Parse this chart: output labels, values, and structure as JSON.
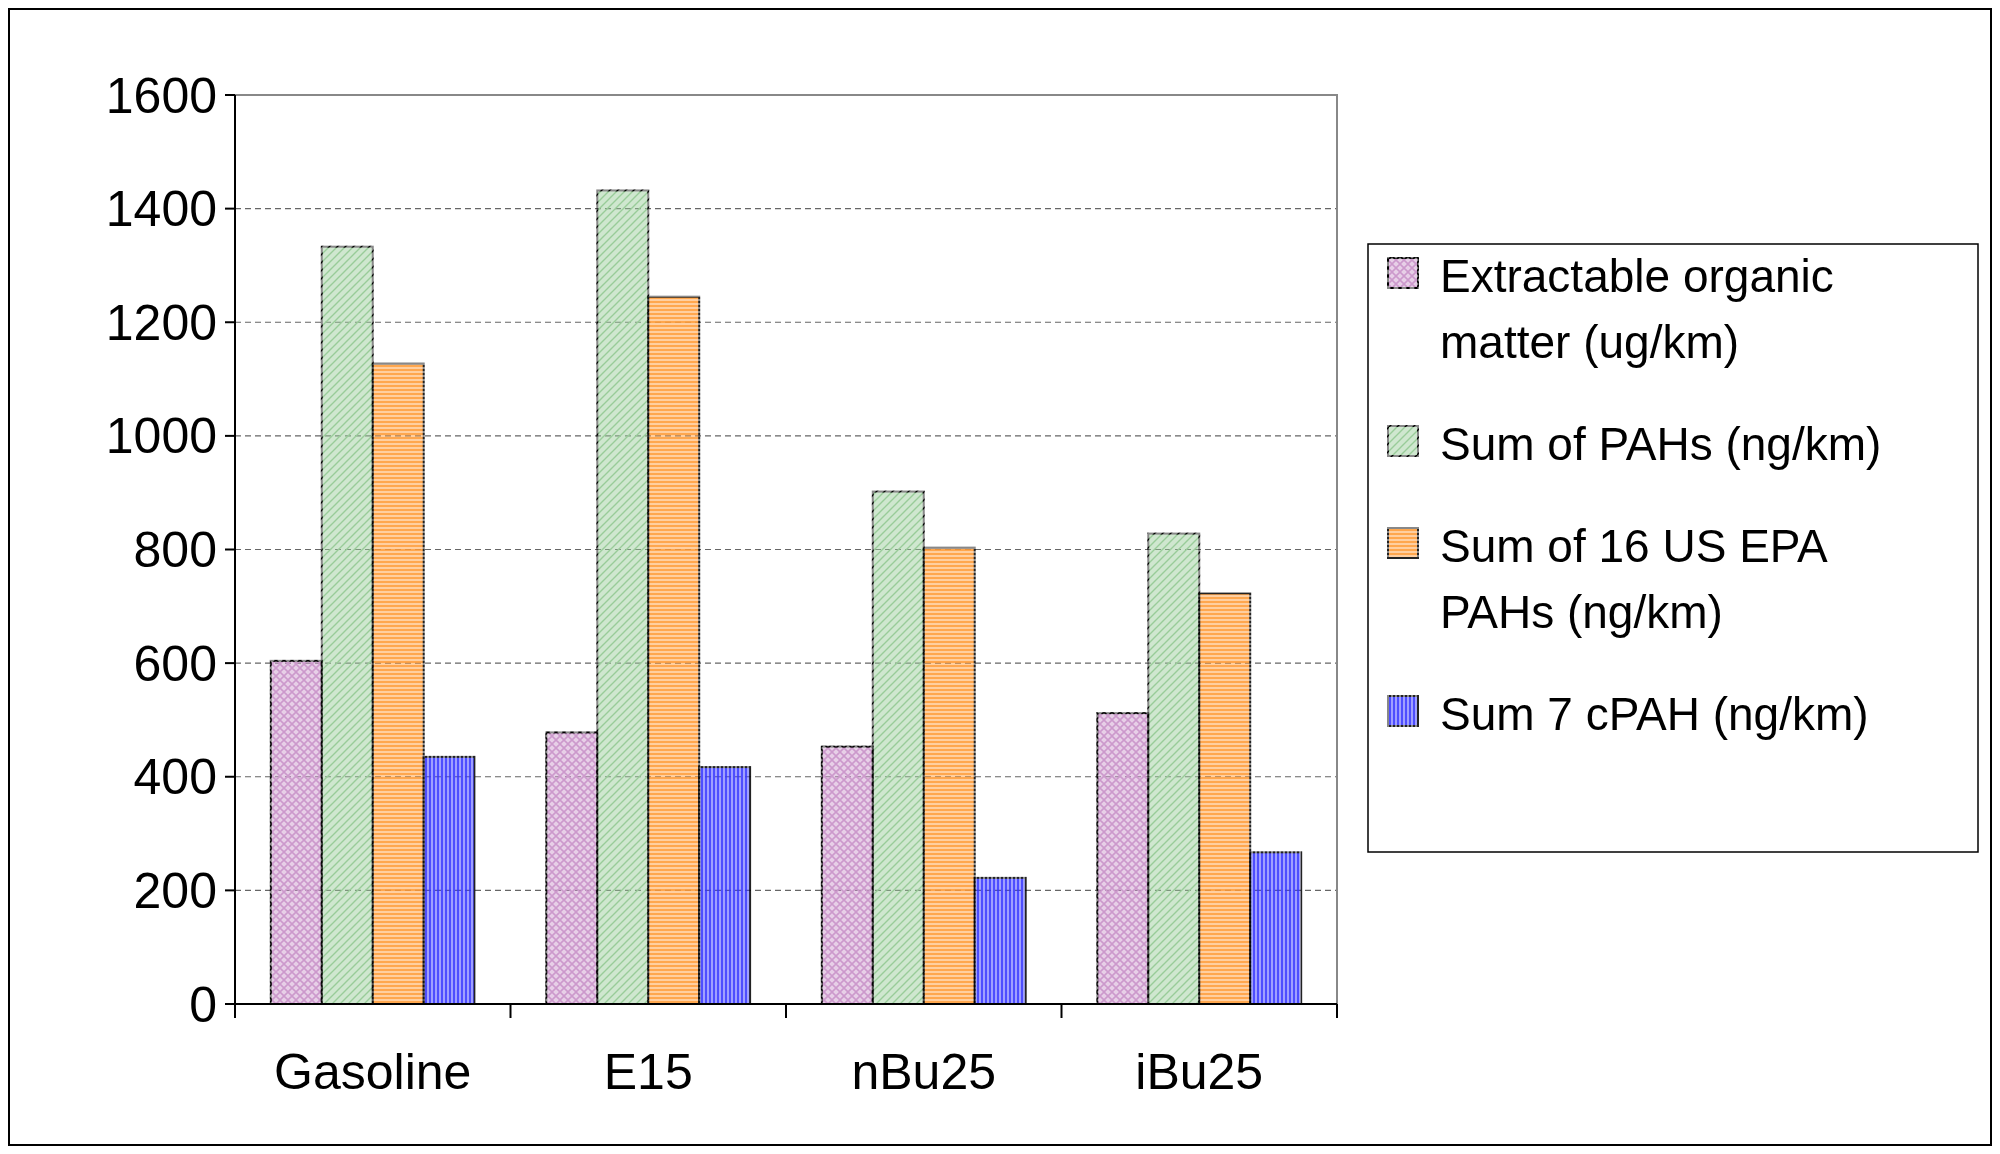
{
  "chart_data": {
    "type": "bar",
    "categories": [
      "Gasoline",
      "E15",
      "nBu25",
      "iBu25"
    ],
    "series": [
      {
        "name": "Extractable organic matter (ug/km)",
        "color": "#cc99cc",
        "values": [
          604,
          478,
          453,
          512
        ]
      },
      {
        "name": "Sum of PAHs (ng/km)",
        "color": "#99cc99",
        "values": [
          1333,
          1432,
          902,
          828
        ]
      },
      {
        "name": "Sum of 16 US EPA PAHs (ng/km)",
        "color": "#ff9933",
        "values": [
          1127,
          1245,
          803,
          723
        ]
      },
      {
        "name": "Sum 7 cPAH (ng/km)",
        "color": "#3333ff",
        "values": [
          435,
          417,
          222,
          267
        ]
      }
    ],
    "ylim": [
      0,
      1600
    ],
    "yticks": [
      0,
      200,
      400,
      600,
      800,
      1000,
      1200,
      1400,
      1600
    ],
    "grid": "y",
    "legend": "right"
  }
}
